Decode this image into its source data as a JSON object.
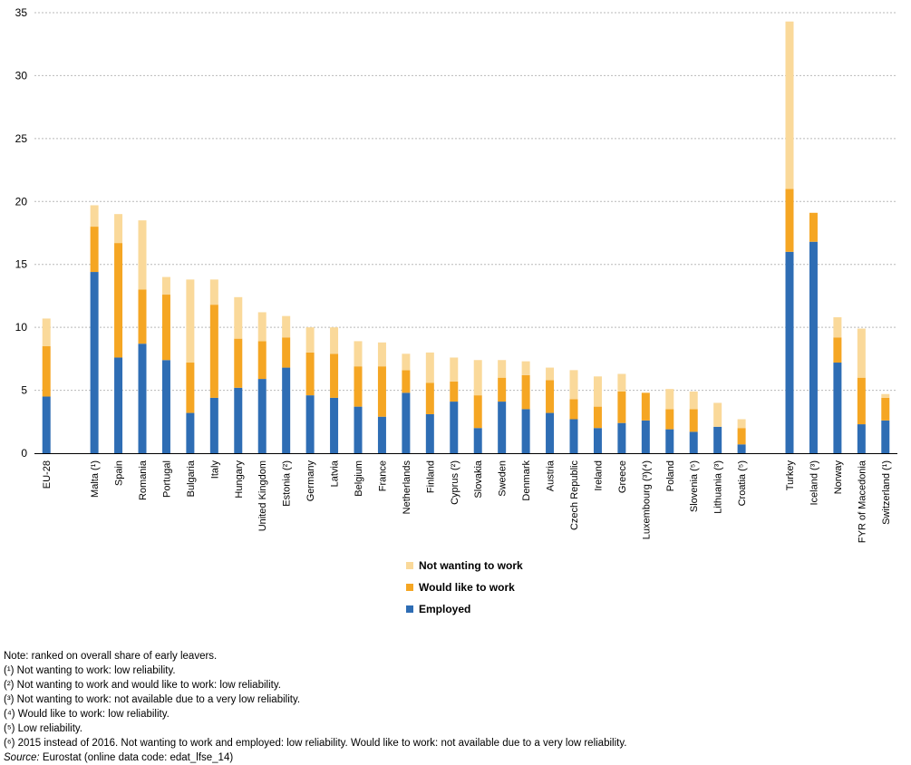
{
  "chart_data": {
    "type": "bar",
    "stacked": true,
    "ylim": [
      0,
      35
    ],
    "yticks": [
      0,
      5,
      10,
      15,
      20,
      25,
      30,
      35
    ],
    "grid": true,
    "legend_position": "bottom-center",
    "categories": [
      "EU-28",
      "",
      "Malta (¹)",
      "Spain",
      "Romania",
      "Portugal",
      "Bulgaria",
      "Italy",
      "Hungary",
      "United Kingdom",
      "Estonia (²)",
      "Germany",
      "Latvia",
      "Belgium",
      "France",
      "Netherlands",
      "Finland",
      "Cyprus (²)",
      "Slovakia",
      "Sweden",
      "Denmark",
      "Austria",
      "Czech Republic",
      "Ireland",
      "Greece",
      "Luxembourg (³)(⁴)",
      "Poland",
      "Slovenia (⁵)",
      "Lithuania (³)",
      "Croatia (⁵)",
      "",
      "Turkey",
      "Iceland (³)",
      "Norway",
      "FYR of Macedonia",
      "Switzerland (¹)"
    ],
    "series": [
      {
        "name": "Employed",
        "color": "#2e6db4",
        "values": [
          4.5,
          null,
          14.4,
          7.6,
          8.7,
          7.4,
          3.2,
          4.4,
          5.2,
          5.9,
          6.8,
          4.6,
          4.4,
          3.7,
          2.9,
          4.8,
          3.1,
          4.1,
          2.0,
          4.1,
          3.5,
          3.2,
          2.7,
          2.0,
          2.4,
          2.6,
          1.9,
          1.7,
          2.1,
          0.7,
          null,
          16.0,
          16.8,
          7.2,
          2.3,
          2.6
        ]
      },
      {
        "name": "Would like to work",
        "color": "#f5a623",
        "values": [
          4.0,
          null,
          3.6,
          9.1,
          4.3,
          5.2,
          4.0,
          7.4,
          3.9,
          3.0,
          2.4,
          3.4,
          3.5,
          3.2,
          4.0,
          1.8,
          2.5,
          1.6,
          2.6,
          1.9,
          2.7,
          2.6,
          1.6,
          1.7,
          2.5,
          2.2,
          1.6,
          1.8,
          0.0,
          1.3,
          null,
          5.0,
          2.3,
          2.0,
          3.7,
          1.8
        ]
      },
      {
        "name": "Not wanting to work",
        "color": "#fad99a",
        "values": [
          2.2,
          null,
          1.7,
          2.3,
          5.5,
          1.4,
          6.6,
          2.0,
          3.3,
          2.3,
          1.7,
          2.0,
          2.1,
          2.0,
          1.9,
          1.3,
          2.4,
          1.9,
          2.8,
          1.4,
          1.1,
          1.0,
          2.3,
          2.4,
          1.4,
          0.0,
          1.6,
          1.4,
          1.9,
          0.7,
          null,
          13.3,
          0.0,
          1.6,
          3.9,
          0.3
        ]
      }
    ]
  },
  "notes": {
    "note": "Note: ranked on overall share of early leavers.",
    "n1": "(¹) Not wanting to work: low reliability.",
    "n2": "(²) Not wanting to work and would like to work: low reliability.",
    "n3": "(³) Not wanting to work: not available due to a very low reliability.",
    "n4": "(⁴) Would like to work: low reliability.",
    "n5": "(⁵) Low reliability.",
    "n6": "(⁶) 2015 instead of 2016. Not wanting to work and employed: low reliability. Would like to work: not available due to a very low reliability.",
    "source_label": "Source:",
    "source_text": " Eurostat (online data code: edat_lfse_14)"
  }
}
